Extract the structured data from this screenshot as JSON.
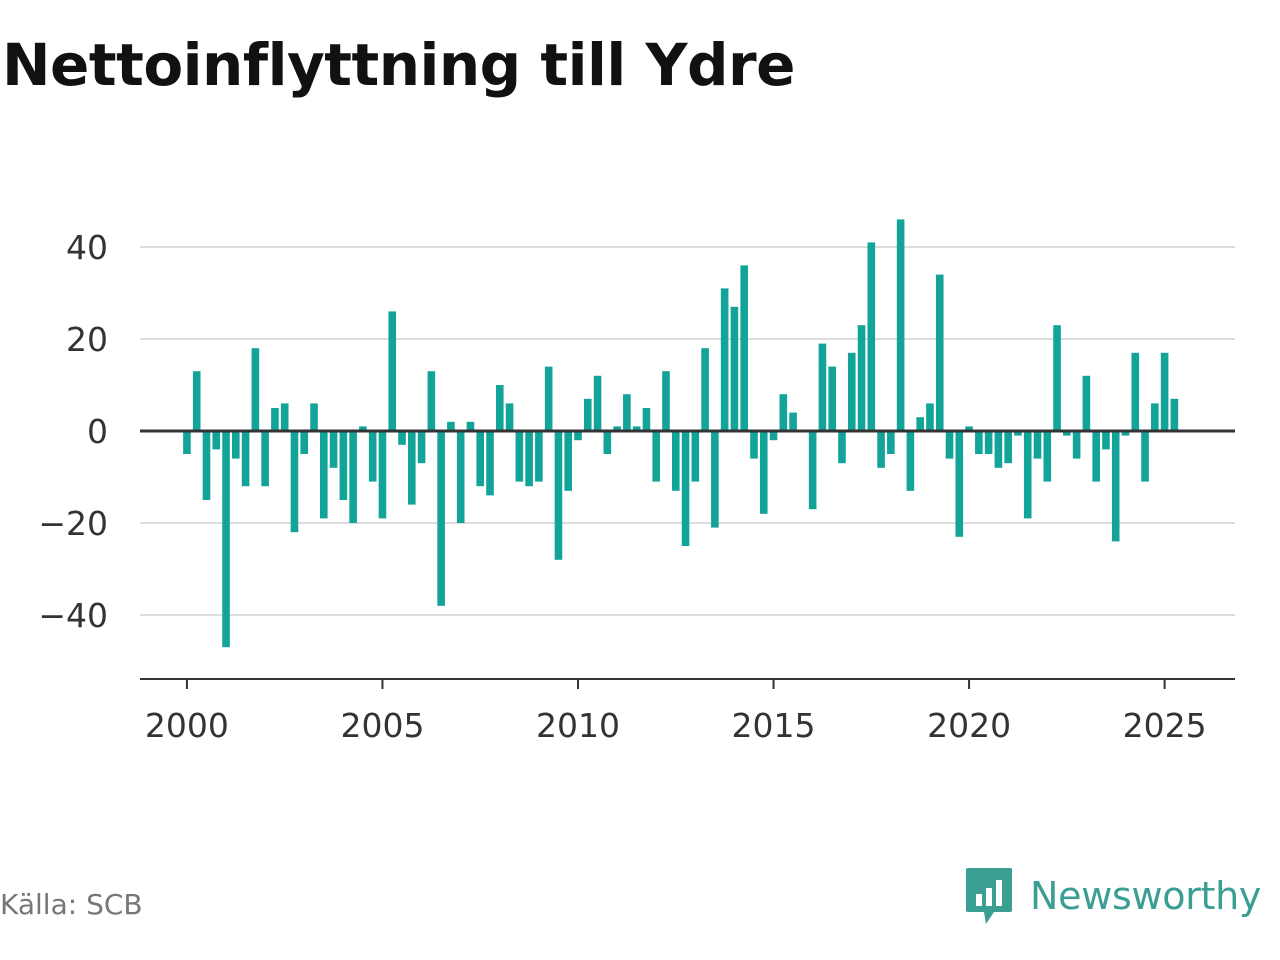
{
  "chart_data": {
    "type": "bar",
    "title": "Nettoinflyttning till Ydre",
    "xlabel": "",
    "ylabel": "",
    "x_start": 2000.0,
    "x_step": 0.25,
    "values": [
      -5,
      13,
      -15,
      -4,
      -47,
      -6,
      -12,
      18,
      -12,
      5,
      6,
      -22,
      -5,
      6,
      -19,
      -8,
      -15,
      -20,
      1,
      -11,
      -19,
      26,
      -3,
      -16,
      -7,
      13,
      -38,
      2,
      -20,
      2,
      -12,
      -14,
      10,
      6,
      -11,
      -12,
      -11,
      14,
      -28,
      -13,
      -2,
      7,
      12,
      -5,
      1,
      8,
      1,
      5,
      -11,
      13,
      -13,
      -25,
      -11,
      18,
      -21,
      31,
      27,
      36,
      -6,
      -18,
      -2,
      8,
      4,
      0,
      -17,
      19,
      14,
      -7,
      17,
      23,
      41,
      -8,
      -5,
      46,
      -13,
      3,
      6,
      34,
      -6,
      -23,
      1,
      -5,
      -5,
      -8,
      -7,
      -1,
      -19,
      -6,
      -11,
      23,
      -1,
      -6,
      12,
      -11,
      -4,
      -24,
      -1,
      17,
      -11,
      6,
      17,
      7
    ],
    "x_ticks": [
      "2000",
      "2005",
      "2010",
      "2015",
      "2020",
      "2025"
    ],
    "y_ticks": [
      "40",
      "20",
      "0",
      "−20",
      "−40"
    ],
    "ylim": [
      -54,
      54
    ],
    "xlim": [
      1998.8,
      2026.8
    ],
    "grid": true,
    "legend": "none",
    "bar_color": "#12a399"
  },
  "source": "Källa: SCB",
  "logo": {
    "text": "Newsworthy",
    "icon": "chart-bubble-icon",
    "color": "#3a9e93"
  }
}
